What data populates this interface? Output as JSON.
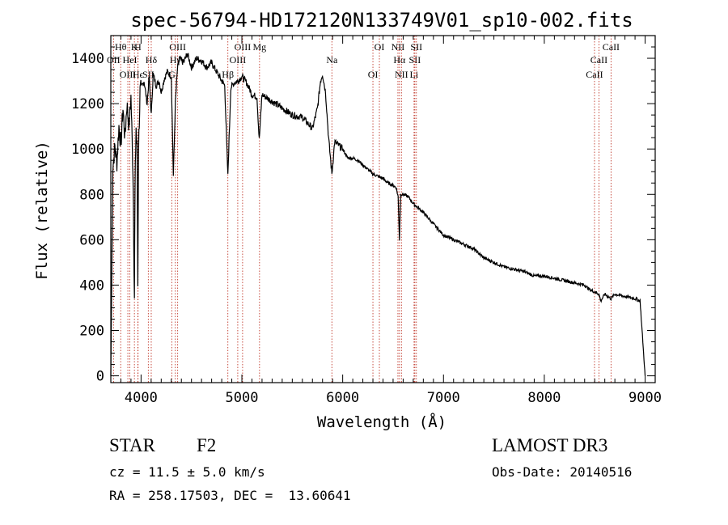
{
  "chart_data": {
    "type": "line",
    "title": "spec-56794-HD172120N133749V01_sp10-002.fits",
    "xlabel": "Wavelength (Å)",
    "ylabel": "Flux (relative)",
    "xlim": [
      3700,
      9100
    ],
    "ylim": [
      -30,
      1500
    ],
    "xticks": [
      "4000",
      "5000",
      "6000",
      "7000",
      "8000",
      "9000"
    ],
    "yticks": [
      "0",
      "200",
      "400",
      "600",
      "800",
      "1000",
      "1200",
      "1400"
    ],
    "series": [
      {
        "name": "flux",
        "x": [
          3700,
          3720,
          3740,
          3760,
          3780,
          3800,
          3820,
          3840,
          3860,
          3880,
          3900,
          3920,
          3934,
          3940,
          3950,
          3960,
          3968,
          3975,
          3990,
          4010,
          4030,
          4060,
          4080,
          4101,
          4120,
          4150,
          4180,
          4200,
          4230,
          4260,
          4300,
          4320,
          4340,
          4360,
          4380,
          4420,
          4460,
          4500,
          4550,
          4600,
          4650,
          4700,
          4750,
          4800,
          4830,
          4861,
          4890,
          4920,
          4960,
          5000,
          5050,
          5100,
          5150,
          5172,
          5200,
          5300,
          5400,
          5500,
          5600,
          5700,
          5750,
          5780,
          5800,
          5830,
          5860,
          5893,
          5920,
          5950,
          6000,
          6050,
          6100,
          6150,
          6200,
          6250,
          6300,
          6350,
          6400,
          6450,
          6500,
          6530,
          6550,
          6563,
          6575,
          6600,
          6650,
          6700,
          6800,
          6900,
          7000,
          7100,
          7200,
          7300,
          7350,
          7400,
          7500,
          7600,
          7700,
          7800,
          7900,
          8000,
          8100,
          8200,
          8300,
          8400,
          8450,
          8500,
          8542,
          8560,
          8600,
          8662,
          8700,
          8800,
          8900,
          8950,
          9000
        ],
        "values": [
          0,
          920,
          1010,
          940,
          1100,
          1020,
          1180,
          1050,
          1200,
          1100,
          1230,
          900,
          350,
          800,
          1100,
          1000,
          400,
          1000,
          1250,
          1280,
          1300,
          1200,
          1320,
          1150,
          1330,
          1280,
          1300,
          1250,
          1310,
          1340,
          1320,
          880,
          1200,
          1350,
          1400,
          1380,
          1420,
          1360,
          1400,
          1390,
          1360,
          1380,
          1340,
          1300,
          1280,
          880,
          1270,
          1290,
          1300,
          1320,
          1290,
          1240,
          1230,
          1040,
          1240,
          1210,
          1180,
          1150,
          1140,
          1090,
          1180,
          1300,
          1330,
          1250,
          1050,
          890,
          1030,
          1020,
          1000,
          960,
          960,
          950,
          930,
          910,
          890,
          880,
          870,
          850,
          840,
          830,
          790,
          600,
          800,
          800,
          790,
          760,
          720,
          670,
          620,
          600,
          580,
          560,
          540,
          520,
          500,
          480,
          470,
          460,
          440,
          440,
          430,
          420,
          410,
          400,
          380,
          370,
          360,
          330,
          360,
          340,
          360,
          350,
          340,
          330,
          0
        ]
      }
    ],
    "line_markers": [
      {
        "label": "Hθ",
        "x": 3798
      },
      {
        "label": "OII",
        "x": 3727
      },
      {
        "label": "OIII",
        "x": 3869
      },
      {
        "label": "K",
        "x": 3934
      },
      {
        "label": "HeI",
        "x": 3889
      },
      {
        "label": "Hϵ",
        "x": 3970
      },
      {
        "label": "H",
        "x": 3968
      },
      {
        "label": "Hδ",
        "x": 4101
      },
      {
        "label": "SII",
        "x": 4072
      },
      {
        "label": "OIII",
        "x": 4363
      },
      {
        "label": "Hγ",
        "x": 4340
      },
      {
        "label": "G",
        "x": 4305
      },
      {
        "label": "OIII",
        "x": 5007
      },
      {
        "label": "OIII",
        "x": 4959
      },
      {
        "label": "Hβ",
        "x": 4861
      },
      {
        "label": "Mg",
        "x": 5175
      },
      {
        "label": "Na",
        "x": 5893
      },
      {
        "label": "OI",
        "x": 6300
      },
      {
        "label": "OI",
        "x": 6364
      },
      {
        "label": "Hα",
        "x": 6563
      },
      {
        "label": "NII",
        "x": 6583
      },
      {
        "label": "NII",
        "x": 6548
      },
      {
        "label": "SII",
        "x": 6716
      },
      {
        "label": "Li",
        "x": 6708
      },
      {
        "label": "SII",
        "x": 6731
      },
      {
        "label": "CaII",
        "x": 8542
      },
      {
        "label": "CaII",
        "x": 8498
      },
      {
        "label": "CaII",
        "x": 8662
      }
    ]
  },
  "info": {
    "object_class": "STAR",
    "subclass": "F2",
    "survey": "LAMOST DR3",
    "redshift": "cz = 11.5 ± 5.0 km/s",
    "obs_date": "Obs-Date: 20140516",
    "coords": "RA = 258.17503, DEC =  13.60641"
  },
  "colors": {
    "axis": "#000000",
    "spectrum": "#000000",
    "marker": "#c0392b"
  }
}
